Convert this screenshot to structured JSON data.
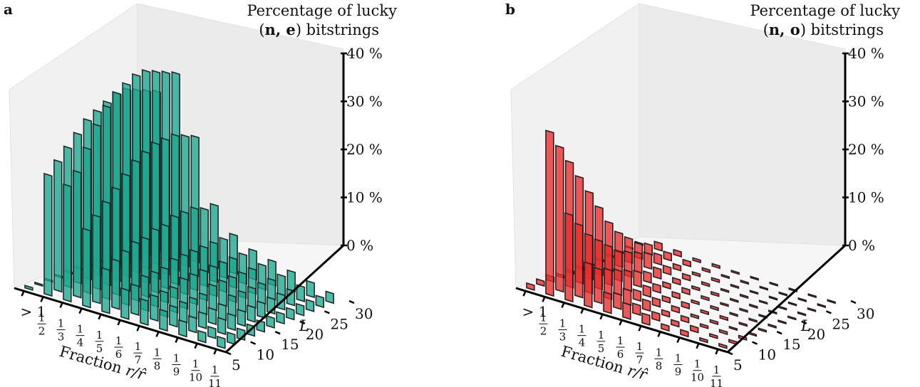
{
  "panels": [
    {
      "letter": "a",
      "title_line1": "Percentage of lucky",
      "title_line2_open": "(",
      "title_line2_bold": "n, e",
      "title_line2_close": ") bitstrings",
      "color": "#1aa88e",
      "edge": "#1f2a28"
    },
    {
      "letter": "b",
      "title_line1": "Percentage of lucky",
      "title_line2_open": "(",
      "title_line2_bold": "n, o",
      "title_line2_close": ") bitstrings",
      "color": "#ec2a2a",
      "edge": "#2a1f1f"
    }
  ],
  "axes": {
    "z_ticks": [
      "0 %",
      "10 %",
      "20 %",
      "30 %",
      "40 %"
    ],
    "L_ticks": [
      "5",
      "10",
      "15",
      "20",
      "25",
      "30"
    ],
    "L_label": "L",
    "x_first_label": "> 1",
    "x_fractions": [
      {
        "num": "1",
        "den": "2"
      },
      {
        "num": "1",
        "den": "3"
      },
      {
        "num": "1",
        "den": "4"
      },
      {
        "num": "1",
        "den": "5"
      },
      {
        "num": "1",
        "den": "6"
      },
      {
        "num": "1",
        "den": "7"
      },
      {
        "num": "1",
        "den": "8"
      },
      {
        "num": "1",
        "den": "9"
      },
      {
        "num": "1",
        "den": "10"
      },
      {
        "num": "1",
        "den": "11"
      }
    ],
    "x_label_text": "Fraction ",
    "x_label_math": "r/r̂"
  },
  "chart_data": [
    {
      "type": "bar3d",
      "title": "Percentage of lucky (n, e) bitstrings",
      "xlabel": "Fraction r/r̂",
      "ylabel": "L",
      "zlabel": "",
      "categories": [
        ">1",
        "1/2",
        "1/3",
        "1/4",
        "1/5",
        "1/6",
        "1/7",
        "1/8",
        "1/9",
        "1/10",
        "1/11"
      ],
      "L_values": [
        6,
        8,
        10,
        12,
        14,
        16,
        18,
        20,
        22,
        24,
        26,
        28
      ],
      "zlim": [
        0,
        40
      ],
      "series": [
        {
          "L": 6,
          "values": [
            0.5,
            25,
            24,
            16,
            9,
            6,
            5,
            4,
            3,
            2,
            2
          ]
        },
        {
          "L": 8,
          "values": [
            0.3,
            27,
            26,
            18,
            10,
            6,
            5,
            4,
            3,
            2,
            2
          ]
        },
        {
          "L": 10,
          "values": [
            0.3,
            29,
            30,
            20,
            11,
            7,
            5,
            4,
            3,
            3,
            2
          ]
        },
        {
          "L": 12,
          "values": [
            0.3,
            31,
            34,
            22,
            12,
            7,
            5,
            4,
            3,
            3,
            2
          ]
        },
        {
          "L": 14,
          "values": [
            0.3,
            33,
            37,
            24,
            12,
            7,
            6,
            4,
            3,
            3,
            2
          ]
        },
        {
          "L": 16,
          "values": [
            0.2,
            34,
            39,
            26,
            13,
            8,
            6,
            5,
            4,
            3,
            2
          ]
        },
        {
          "L": 18,
          "values": [
            0.2,
            35,
            40,
            27,
            13,
            8,
            6,
            5,
            4,
            3,
            2
          ]
        },
        {
          "L": 20,
          "values": [
            0.2,
            36,
            41,
            28,
            14,
            8,
            6,
            5,
            4,
            3,
            2
          ]
        },
        {
          "L": 22,
          "values": [
            0.2,
            36,
            41,
            28,
            14,
            8,
            6,
            5,
            4,
            3,
            2
          ]
        },
        {
          "L": 24,
          "values": [
            0.1,
            35,
            40,
            28,
            14,
            8,
            6,
            5,
            4,
            3,
            2
          ]
        },
        {
          "L": 26,
          "values": [
            0.1,
            34,
            39,
            27,
            13,
            8,
            6,
            5,
            4,
            3,
            2
          ]
        },
        {
          "L": 28,
          "values": [
            0.1,
            33,
            38,
            26,
            13,
            8,
            6,
            5,
            4,
            3,
            2
          ]
        }
      ]
    },
    {
      "type": "bar3d",
      "title": "Percentage of lucky (n, o) bitstrings",
      "xlabel": "Fraction r/r̂",
      "ylabel": "L",
      "zlabel": "",
      "categories": [
        ">1",
        "1/2",
        "1/3",
        "1/4",
        "1/5",
        "1/6",
        "1/7",
        "1/8",
        "1/9",
        "1/10",
        "1/11"
      ],
      "L_values": [
        6,
        8,
        10,
        12,
        14,
        16,
        18,
        20,
        22,
        24,
        26,
        28
      ],
      "zlim": [
        0,
        40
      ],
      "series": [
        {
          "L": 6,
          "values": [
            1,
            34,
            18,
            9,
            4,
            3,
            2,
            1,
            1,
            0.5,
            0.5
          ]
        },
        {
          "L": 8,
          "values": [
            1,
            30,
            15,
            7,
            3,
            2,
            1.5,
            1,
            1,
            0.5,
            0.5
          ]
        },
        {
          "L": 10,
          "values": [
            1,
            26,
            12,
            6,
            3,
            2,
            1,
            1,
            0.5,
            0.5,
            0.5
          ]
        },
        {
          "L": 12,
          "values": [
            0.5,
            22,
            10,
            5,
            2,
            1.5,
            1,
            0.5,
            0.5,
            0.3,
            0.3
          ]
        },
        {
          "L": 14,
          "values": [
            0.5,
            18,
            8,
            4,
            2,
            1,
            1,
            0.5,
            0.5,
            0.3,
            0.3
          ]
        },
        {
          "L": 16,
          "values": [
            0.5,
            14,
            6,
            3,
            1.5,
            1,
            0.5,
            0.5,
            0.3,
            0.3,
            0.3
          ]
        },
        {
          "L": 18,
          "values": [
            0.3,
            10,
            5,
            2,
            1,
            1,
            0.5,
            0.3,
            0.3,
            0.2,
            0.2
          ]
        },
        {
          "L": 20,
          "values": [
            0.3,
            7,
            4,
            2,
            1,
            0.5,
            0.5,
            0.3,
            0.3,
            0.2,
            0.2
          ]
        },
        {
          "L": 22,
          "values": [
            0.3,
            5,
            3,
            1.5,
            1,
            0.5,
            0.3,
            0.3,
            0.2,
            0.2,
            0.2
          ]
        },
        {
          "L": 24,
          "values": [
            0.2,
            3,
            2,
            1,
            0.5,
            0.5,
            0.3,
            0.2,
            0.2,
            0.2,
            0.2
          ]
        },
        {
          "L": 26,
          "values": [
            0.2,
            2,
            1.5,
            1,
            0.5,
            0.3,
            0.3,
            0.2,
            0.2,
            0.2,
            0.2
          ]
        },
        {
          "L": 28,
          "values": [
            0.2,
            1.5,
            1,
            0.5,
            0.5,
            0.3,
            0.2,
            0.2,
            0.2,
            0.2,
            0.2
          ]
        }
      ]
    }
  ]
}
